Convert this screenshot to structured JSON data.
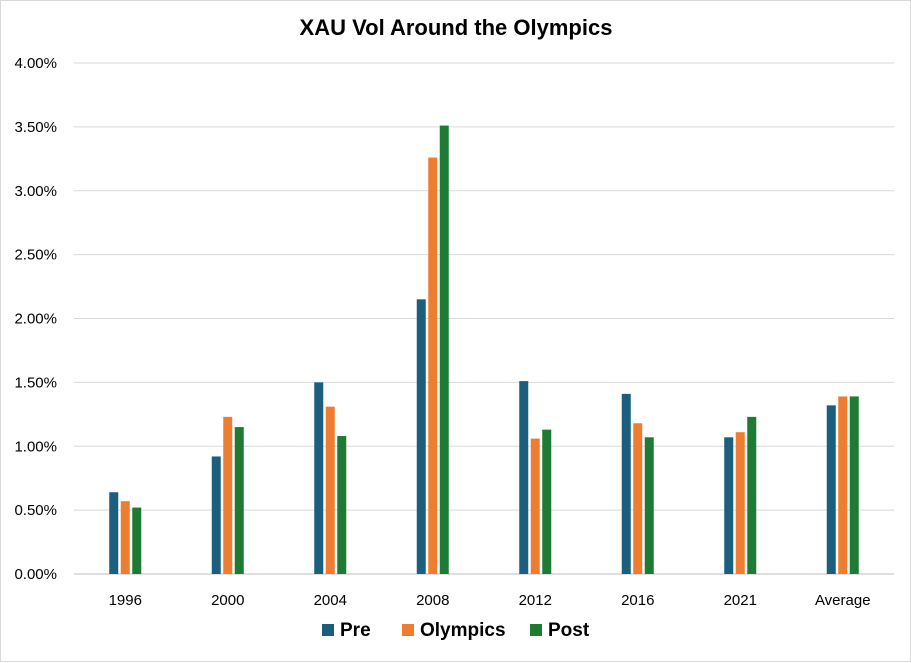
{
  "chart_data": {
    "type": "bar",
    "title": "XAU Vol Around the Olympics",
    "xlabel": "",
    "ylabel": "",
    "categories": [
      "1996",
      "2000",
      "2004",
      "2008",
      "2012",
      "2016",
      "2021",
      "Average"
    ],
    "series": [
      {
        "name": "Pre",
        "color": "#1b5e7e",
        "values": [
          0.0064,
          0.0092,
          0.015,
          0.0215,
          0.0151,
          0.0141,
          0.0107,
          0.0132
        ]
      },
      {
        "name": "Olympics",
        "color": "#ed7d31",
        "values": [
          0.0057,
          0.0123,
          0.0131,
          0.0326,
          0.0106,
          0.0118,
          0.0111,
          0.0139
        ]
      },
      {
        "name": "Post",
        "color": "#1f7a33",
        "values": [
          0.0052,
          0.0115,
          0.0108,
          0.0351,
          0.0113,
          0.0107,
          0.0123,
          0.0139
        ]
      }
    ],
    "ylim": [
      0,
      0.04
    ],
    "yticks": [
      "0.00%",
      "0.50%",
      "1.00%",
      "1.50%",
      "2.00%",
      "2.50%",
      "3.00%",
      "3.50%",
      "4.00%"
    ],
    "grid": true,
    "legend_position": "bottom"
  }
}
